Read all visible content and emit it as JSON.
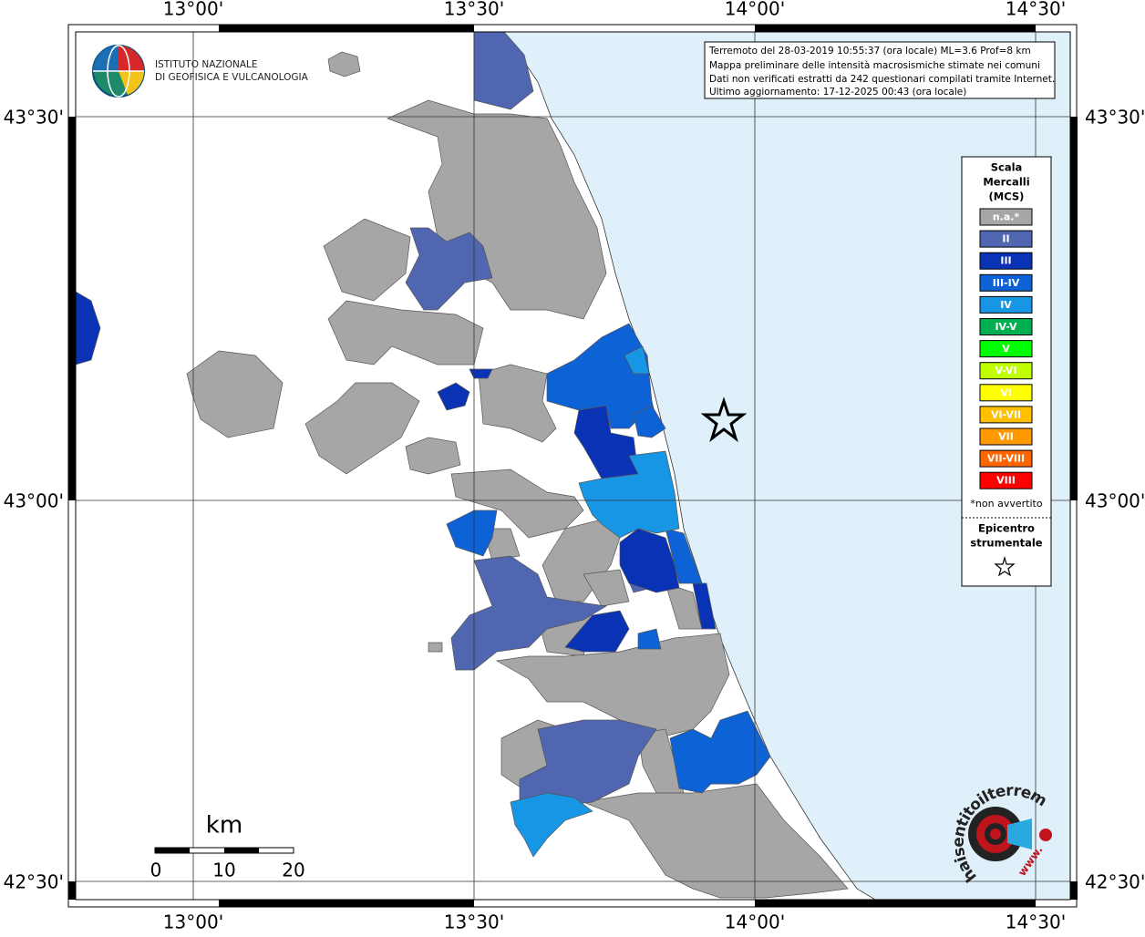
{
  "header": {
    "logo_line1": "ISTITUTO NAZIONALE",
    "logo_line2": "DI GEOFISICA E VULCANOLOGIA"
  },
  "info_box": {
    "lines": [
      "Terremoto del 28-03-2019 10:55:37 (ora locale) ML=3.6 Prof=8 km",
      "Mappa preliminare delle intensità macrosismiche stimate nei comuni",
      "Dati non verificati estratti da 242 questionari compilati tramite Internet.",
      "Ultimo aggiornamento: 17-12-2025 00:43 (ora locale)"
    ]
  },
  "map": {
    "lon_labels": [
      "13°00'",
      "13°30'",
      "14°00'",
      "14°30'"
    ],
    "lat_labels": [
      "43°30'",
      "43°00'",
      "42°30'"
    ]
  },
  "legend": {
    "title_lines": [
      "Scala",
      "Mercalli",
      "(MCS)"
    ],
    "items": [
      {
        "label": "n.a.*",
        "color": "#a6a6a6"
      },
      {
        "label": "II",
        "color": "#5066b0"
      },
      {
        "label": "III",
        "color": "#0a32b4"
      },
      {
        "label": "III-IV",
        "color": "#0d62d6"
      },
      {
        "label": "IV",
        "color": "#1896e6"
      },
      {
        "label": "IV-V",
        "color": "#00b050"
      },
      {
        "label": "V",
        "color": "#00ff00"
      },
      {
        "label": "V-VI",
        "color": "#bfff00"
      },
      {
        "label": "VI",
        "color": "#ffff00"
      },
      {
        "label": "VI-VII",
        "color": "#ffc000"
      },
      {
        "label": "VII",
        "color": "#ff9900"
      },
      {
        "label": "VII-VIII",
        "color": "#ff6600"
      },
      {
        "label": "VIII",
        "color": "#ff0000"
      }
    ],
    "footnote": "*non avvertito",
    "epicenter_lines": [
      "Epicentro",
      "strumentale"
    ]
  },
  "scale_bar": {
    "unit": "km",
    "labels": [
      "0",
      "10",
      "20"
    ]
  },
  "badge": {
    "site": "haisentitoilterremoto.it",
    "www": "www."
  }
}
